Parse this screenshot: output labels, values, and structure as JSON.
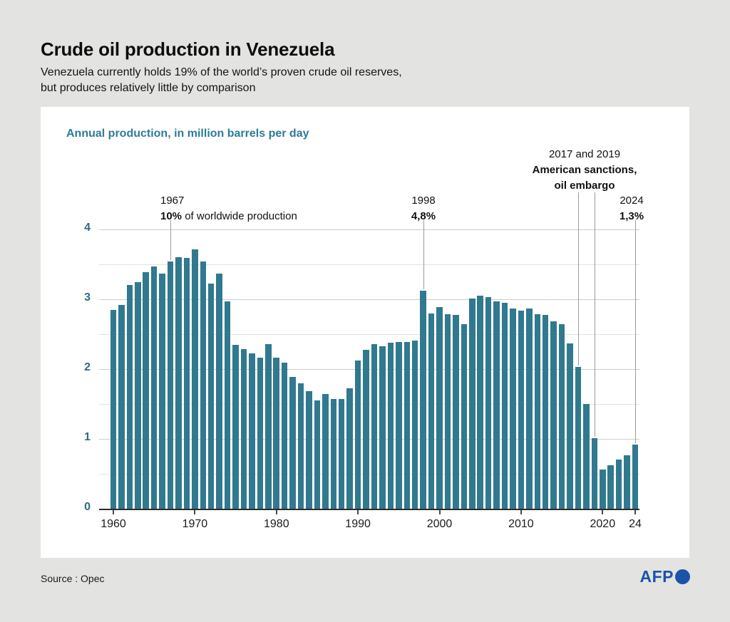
{
  "header": {
    "title": "Crude oil production in Venezuela",
    "subtitle_line1": "Venezuela currently holds 19% of the world’s proven crude oil reserves,",
    "subtitle_line2": "but produces relatively little by comparison"
  },
  "chart_data": {
    "type": "bar",
    "title": "Annual production, in million barrels per day",
    "ylabel": "million barrels per day",
    "ylim": [
      0,
      4
    ],
    "yticks": [
      0,
      1,
      2,
      3,
      4
    ],
    "grid_step": 0.5,
    "legend": "none",
    "bar_color": "#30798e",
    "xticks": [
      {
        "year": 1960,
        "label": "1960"
      },
      {
        "year": 1970,
        "label": "1970"
      },
      {
        "year": 1980,
        "label": "1980"
      },
      {
        "year": 1990,
        "label": "1990"
      },
      {
        "year": 2000,
        "label": "2000"
      },
      {
        "year": 2010,
        "label": "2010"
      },
      {
        "year": 2020,
        "label": "2020"
      },
      {
        "year": 2024,
        "label": "24"
      }
    ],
    "years": [
      1960,
      1961,
      1962,
      1963,
      1964,
      1965,
      1966,
      1967,
      1968,
      1969,
      1970,
      1971,
      1972,
      1973,
      1974,
      1975,
      1976,
      1977,
      1978,
      1979,
      1980,
      1981,
      1982,
      1983,
      1984,
      1985,
      1986,
      1987,
      1988,
      1989,
      1990,
      1991,
      1992,
      1993,
      1994,
      1995,
      1996,
      1997,
      1998,
      1999,
      2000,
      2001,
      2002,
      2003,
      2004,
      2005,
      2006,
      2007,
      2008,
      2009,
      2010,
      2011,
      2012,
      2013,
      2014,
      2015,
      2016,
      2017,
      2018,
      2019,
      2020,
      2021,
      2022,
      2023,
      2024
    ],
    "values": [
      2.85,
      2.92,
      3.2,
      3.25,
      3.39,
      3.47,
      3.37,
      3.54,
      3.6,
      3.59,
      3.71,
      3.54,
      3.22,
      3.37,
      2.97,
      2.35,
      2.29,
      2.23,
      2.16,
      2.36,
      2.16,
      2.09,
      1.89,
      1.8,
      1.68,
      1.55,
      1.64,
      1.57,
      1.57,
      1.73,
      2.12,
      2.28,
      2.36,
      2.33,
      2.38,
      2.39,
      2.39,
      2.41,
      3.12,
      2.8,
      2.89,
      2.79,
      2.78,
      2.64,
      3.01,
      3.05,
      3.03,
      2.97,
      2.95,
      2.87,
      2.84,
      2.87,
      2.79,
      2.78,
      2.68,
      2.64,
      2.37,
      2.03,
      1.5,
      1.01,
      0.56,
      0.62,
      0.7,
      0.77,
      0.92
    ]
  },
  "annotations": [
    {
      "id": "a1967",
      "target_years": [
        1967
      ],
      "lines": [
        [
          {
            "t": "1967",
            "b": 0
          }
        ],
        [
          {
            "t": "10%",
            "b": 1
          },
          {
            "t": " of worldwide production",
            "b": 0
          }
        ]
      ]
    },
    {
      "id": "a1998",
      "target_years": [
        1998
      ],
      "lines": [
        [
          {
            "t": "1998",
            "b": 0
          }
        ],
        [
          {
            "t": "4,8%",
            "b": 1
          }
        ]
      ]
    },
    {
      "id": "a2017",
      "target_years": [
        2017,
        2019
      ],
      "lines": [
        [
          {
            "t": "2017 and 2019",
            "b": 0
          }
        ],
        [
          {
            "t": "American sanctions,",
            "b": 1
          }
        ],
        [
          {
            "t": "oil embargo",
            "b": 1
          }
        ]
      ]
    },
    {
      "id": "a2024",
      "target_years": [
        2024
      ],
      "lines": [
        [
          {
            "t": "2024",
            "b": 0
          }
        ],
        [
          {
            "t": "1,3%",
            "b": 1
          }
        ]
      ]
    }
  ],
  "footer": {
    "source": "Source : Opec",
    "logo_text": "AFP"
  },
  "colors": {
    "background": "#e3e3e1",
    "panel": "#ffffff",
    "bar": "#30798e",
    "accent_teal": "#2e7b99",
    "y_label_teal": "#2c6c84",
    "afp_blue": "#1a53a8"
  }
}
